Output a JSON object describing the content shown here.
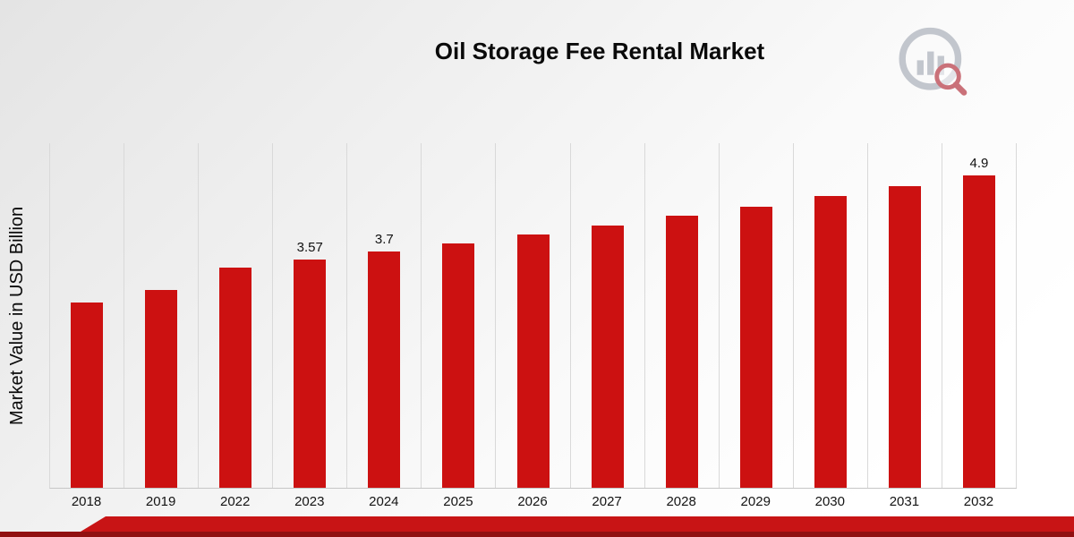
{
  "title": "Oil Storage Fee Rental Market",
  "y_axis_label": "Market Value in USD Billion",
  "colors": {
    "bar": "#cc1111",
    "grid": "#d9d9d9",
    "ribbon": "#c81415",
    "ribbon_dark": "#911011"
  },
  "logo": {
    "icon": "bar-chart-magnifier-logo"
  },
  "chart_data": {
    "type": "bar",
    "title": "Oil Storage Fee Rental Market",
    "xlabel": "",
    "ylabel": "Market Value in USD Billion",
    "categories": [
      "2018",
      "2019",
      "2022",
      "2023",
      "2024",
      "2025",
      "2026",
      "2027",
      "2028",
      "2029",
      "2030",
      "2031",
      "2032"
    ],
    "values": [
      2.9,
      3.1,
      3.45,
      3.57,
      3.7,
      3.83,
      3.97,
      4.11,
      4.26,
      4.41,
      4.57,
      4.73,
      4.9
    ],
    "bar_labels": [
      "",
      "",
      "",
      "3.57",
      "3.7",
      "",
      "",
      "",
      "",
      "",
      "",
      "",
      "4.9"
    ],
    "ylim": [
      0,
      5.4
    ],
    "grid": "vertical",
    "legend": "none",
    "bar_color": "#cc1111"
  }
}
